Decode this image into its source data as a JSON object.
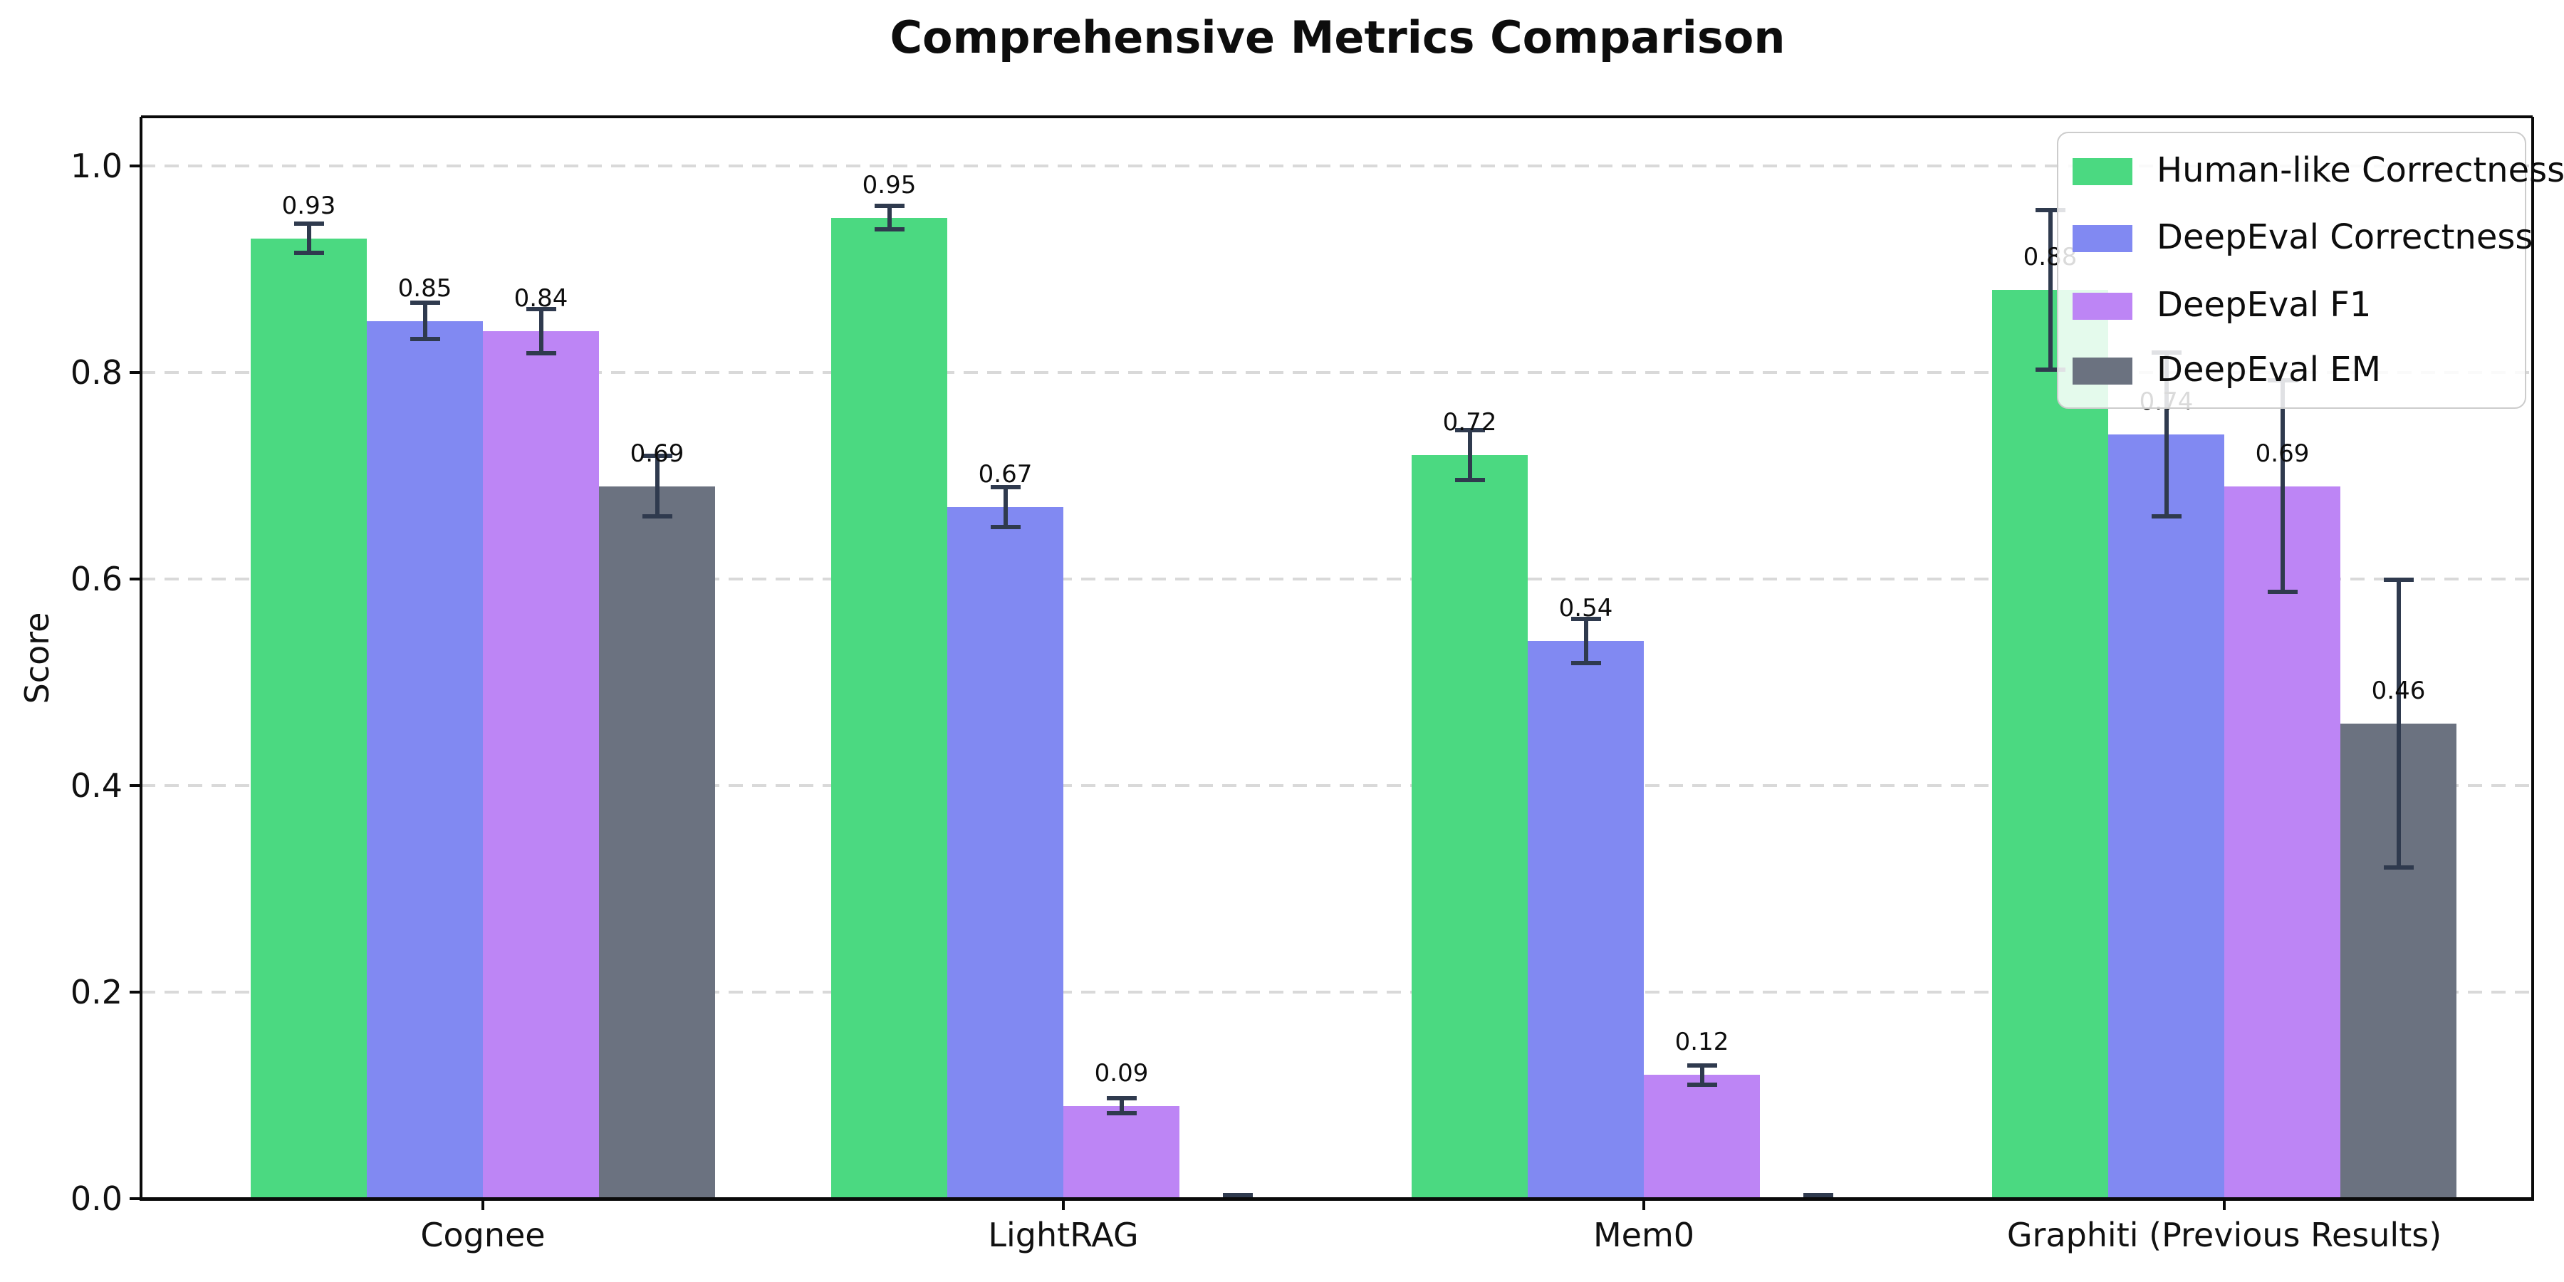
{
  "title": "Comprehensive Metrics Comparison",
  "chart_data": {
    "type": "bar",
    "title": "Comprehensive Metrics Comparison",
    "xlabel": "",
    "ylabel": "Score",
    "categories": [
      "Cognee",
      "LightRAG",
      "Mem0",
      "Graphiti (Previous Results)"
    ],
    "series": [
      {
        "name": "Human-like Correctness",
        "color": "#4bd981",
        "values": [
          0.93,
          0.95,
          0.72,
          0.88
        ],
        "errors": [
          0.015,
          0.012,
          0.025,
          0.078
        ]
      },
      {
        "name": "DeepEval Correctness",
        "color": "#8189f2",
        "values": [
          0.85,
          0.67,
          0.54,
          0.74
        ],
        "errors": [
          0.018,
          0.02,
          0.022,
          0.08
        ]
      },
      {
        "name": "DeepEval F1",
        "color": "#bd85f5",
        "values": [
          0.84,
          0.09,
          0.12,
          0.69
        ],
        "errors": [
          0.022,
          0.008,
          0.01,
          0.103
        ]
      },
      {
        "name": "DeepEval EM",
        "color": "#6b7280",
        "values": [
          0.69,
          0.0,
          0.0,
          0.46
        ],
        "errors": [
          0.03,
          0.004,
          0.004,
          0.14
        ]
      }
    ],
    "bar_value_labels": {
      "format": "two_decimals",
      "hide_zero_bars": true,
      "shown": [
        [
          "0.93",
          "0.95",
          "0.72",
          "0.88"
        ],
        [
          "0.85",
          "0.67",
          "0.54",
          "0.74"
        ],
        [
          "0.84",
          "0.09",
          "0.12",
          "0.69"
        ],
        [
          "0.69",
          "",
          "",
          "0.46"
        ]
      ]
    },
    "yticks": [
      0.0,
      0.2,
      0.4,
      0.6,
      0.8,
      1.0
    ],
    "ytick_labels": [
      "0.0",
      "0.2",
      "0.4",
      "0.6",
      "0.8",
      "1.0"
    ],
    "ylim": [
      0,
      1.05
    ],
    "grid": "horizontal dashed",
    "error_bar_color": "#2f3a4e",
    "legend": {
      "position": "upper right",
      "entries": [
        "Human-like Correctness",
        "DeepEval Correctness",
        "DeepEval F1",
        "DeepEval EM"
      ]
    }
  }
}
